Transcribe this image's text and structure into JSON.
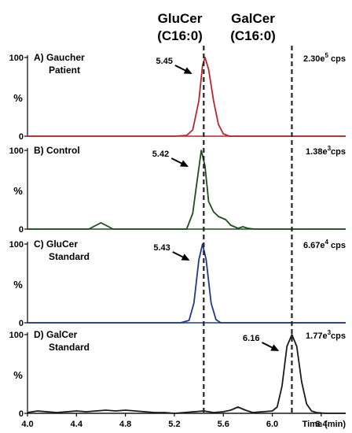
{
  "header": {
    "left_line1": "GluCer",
    "left_line2": "(C16:0)",
    "right_line1": "GalCer",
    "right_line2": "(C16:0)"
  },
  "chart_data": {
    "type": "line",
    "x_axis": {
      "min": 4.0,
      "max": 6.6,
      "ticks": [
        "4.0",
        "4.4",
        "4.8",
        "5.2",
        "5.6",
        "6.0",
        "6.4"
      ],
      "label": "Time (min)"
    },
    "y_axis": {
      "min": 0,
      "max": 100,
      "ticks": [
        "0",
        "100"
      ],
      "label": "%"
    },
    "reference_lines_x": [
      5.44,
      6.16
    ],
    "panels": [
      {
        "label_line1": "A) Gaucher",
        "label_line2": "Patient",
        "intensity": {
          "mantissa": "2.30e",
          "exp": "5",
          "unit": " cps"
        },
        "peak_label": "5.45",
        "color": "#b0282e",
        "points": [
          [
            4.0,
            0
          ],
          [
            5.2,
            0
          ],
          [
            5.3,
            1
          ],
          [
            5.35,
            8
          ],
          [
            5.4,
            45
          ],
          [
            5.43,
            90
          ],
          [
            5.45,
            100
          ],
          [
            5.48,
            85
          ],
          [
            5.52,
            45
          ],
          [
            5.56,
            15
          ],
          [
            5.6,
            3
          ],
          [
            5.65,
            0
          ],
          [
            6.6,
            0
          ]
        ]
      },
      {
        "label_line1": "B) Control",
        "label_line2": "",
        "intensity": {
          "mantissa": "1.38e",
          "exp": "3",
          "unit": "cps"
        },
        "peak_label": "5.42",
        "color": "#1e4d1e",
        "points": [
          [
            4.0,
            0
          ],
          [
            4.5,
            0
          ],
          [
            4.55,
            4
          ],
          [
            4.6,
            8
          ],
          [
            4.65,
            4
          ],
          [
            4.7,
            0
          ],
          [
            5.3,
            0
          ],
          [
            5.35,
            20
          ],
          [
            5.38,
            55
          ],
          [
            5.42,
            100
          ],
          [
            5.45,
            80
          ],
          [
            5.48,
            35
          ],
          [
            5.52,
            22
          ],
          [
            5.56,
            16
          ],
          [
            5.62,
            12
          ],
          [
            5.66,
            5
          ],
          [
            5.72,
            1
          ],
          [
            5.76,
            3
          ],
          [
            5.8,
            1
          ],
          [
            5.86,
            0
          ],
          [
            6.6,
            0
          ]
        ]
      },
      {
        "label_line1": "C) GluCer",
        "label_line2": "Standard",
        "intensity": {
          "mantissa": "6.67e",
          "exp": "4",
          "unit": " cps"
        },
        "peak_label": "5.43",
        "color": "#1f3a8a",
        "points": [
          [
            4.0,
            0
          ],
          [
            5.25,
            0
          ],
          [
            5.32,
            3
          ],
          [
            5.36,
            25
          ],
          [
            5.4,
            80
          ],
          [
            5.43,
            100
          ],
          [
            5.46,
            80
          ],
          [
            5.5,
            25
          ],
          [
            5.54,
            4
          ],
          [
            5.58,
            0
          ],
          [
            6.6,
            0
          ]
        ]
      },
      {
        "label_line1": "D) GalCer",
        "label_line2": "Standard",
        "intensity": {
          "mantissa": "1.77e",
          "exp": "3",
          "unit": "cps"
        },
        "peak_label": "6.16",
        "color": "#1a1a1a",
        "points": [
          [
            4.0,
            1
          ],
          [
            4.08,
            3
          ],
          [
            4.16,
            2
          ],
          [
            4.24,
            1
          ],
          [
            4.32,
            2
          ],
          [
            4.4,
            3
          ],
          [
            4.48,
            2
          ],
          [
            4.56,
            3
          ],
          [
            4.64,
            4
          ],
          [
            4.72,
            3
          ],
          [
            4.8,
            4
          ],
          [
            4.88,
            3
          ],
          [
            4.96,
            2
          ],
          [
            5.04,
            1
          ],
          [
            5.12,
            1
          ],
          [
            5.2,
            0
          ],
          [
            5.28,
            1
          ],
          [
            5.36,
            2
          ],
          [
            5.44,
            3
          ],
          [
            5.52,
            1
          ],
          [
            5.6,
            2
          ],
          [
            5.66,
            4
          ],
          [
            5.72,
            8
          ],
          [
            5.78,
            4
          ],
          [
            5.84,
            1
          ],
          [
            5.92,
            2
          ],
          [
            6.0,
            3
          ],
          [
            6.04,
            8
          ],
          [
            6.08,
            35
          ],
          [
            6.12,
            85
          ],
          [
            6.16,
            100
          ],
          [
            6.2,
            85
          ],
          [
            6.24,
            40
          ],
          [
            6.28,
            12
          ],
          [
            6.32,
            3
          ],
          [
            6.36,
            1
          ],
          [
            6.44,
            0
          ],
          [
            6.52,
            0
          ],
          [
            6.6,
            0
          ]
        ]
      }
    ]
  }
}
